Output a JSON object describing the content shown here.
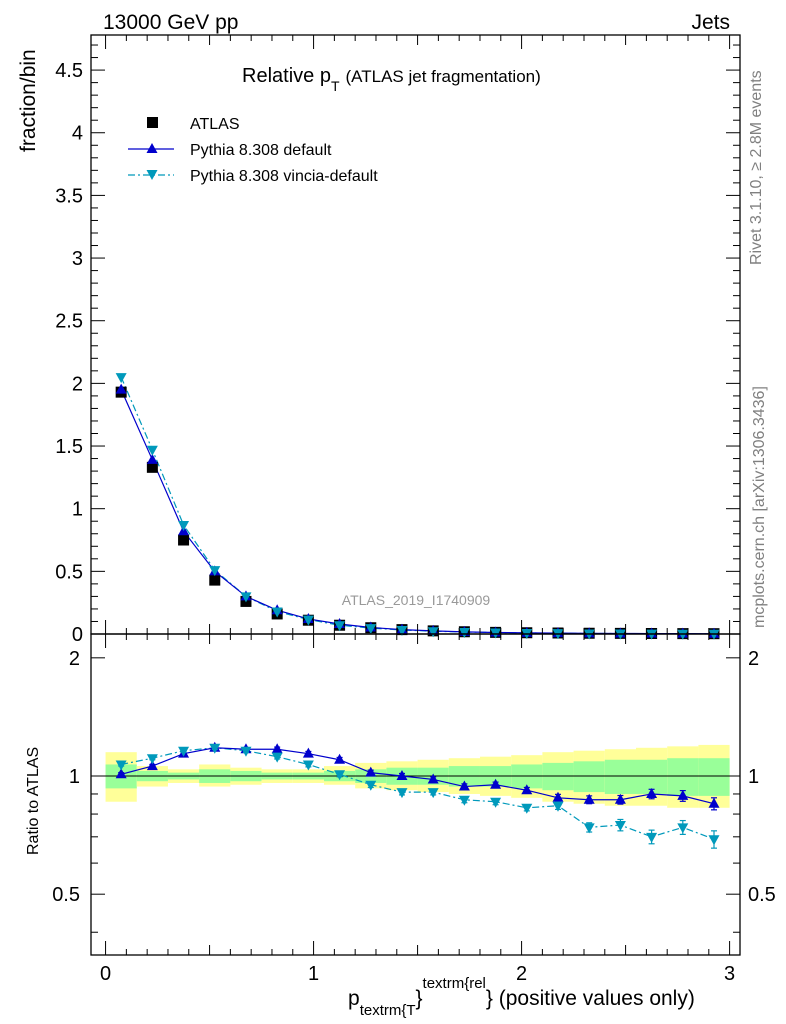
{
  "header": {
    "energy_label": "13000 GeV pp",
    "process_label": "Jets"
  },
  "side_labels": {
    "rivet": "Rivet 3.1.10, ≥ 2.8M events",
    "source": "mcplots.cern.ch [arXiv:1306.3436]"
  },
  "colors": {
    "atlas": "#000000",
    "default": "#0000cc",
    "vincia": "#0099bb",
    "band_inner": "#99ff99",
    "band_outer": "#ffff99",
    "watermark": "#999999"
  },
  "chart_data": {
    "type": "line",
    "title": "Relative p",
    "title_subscript": "T",
    "title_suffix": "(ATLAS jet fragmentation)",
    "analysis_id": "ATLAS_2019_I1740909",
    "xlabel_main": "p",
    "xlabel_sub": "textrm{T",
    "xlabel_sup": "textrm{rel",
    "xlabel_brace": "}",
    "xlabel_tail": "} (positive values only)",
    "ylabel": "fraction/bin",
    "ratio_ylabel": "Ratio to ATLAS",
    "xlim": [
      -0.07,
      3.05
    ],
    "ylim": [
      0,
      4.78
    ],
    "ratio_ylim": [
      0.35,
      2.3
    ],
    "x_ticks": [
      "0",
      "1",
      "2",
      "3"
    ],
    "y_ticks": [
      "0",
      "0.5",
      "1",
      "1.5",
      "2",
      "2.5",
      "3",
      "3.5",
      "4",
      "4.5"
    ],
    "ratio_ticks": [
      "0.5",
      "1",
      "2"
    ],
    "legend_position": "top-left",
    "bin_edges": [
      0,
      0.15,
      0.3,
      0.45,
      0.6,
      0.75,
      0.9,
      1.05,
      1.2,
      1.35,
      1.5,
      1.65,
      1.8,
      1.95,
      2.1,
      2.25,
      2.4,
      2.55,
      2.7,
      2.85,
      3.0
    ],
    "series": [
      {
        "name": "ATLAS",
        "marker": "square",
        "values": [
          1.93,
          1.33,
          0.75,
          0.43,
          0.26,
          0.16,
          0.11,
          0.07,
          0.05,
          0.035,
          0.025,
          0.018,
          0.013,
          0.01,
          0.008,
          0.006,
          0.005,
          0.004,
          0.003,
          0.0025
        ]
      },
      {
        "name": "Pythia 8.308 default",
        "marker": "triangle-up",
        "line": "solid",
        "values": [
          1.95,
          1.39,
          0.82,
          0.5,
          0.3,
          0.19,
          0.12,
          0.08,
          0.052,
          0.035,
          0.025,
          0.017,
          0.012,
          0.009,
          0.007,
          0.0053,
          0.0044,
          0.0036,
          0.0027,
          0.0021
        ],
        "ratio": [
          1.01,
          1.06,
          1.14,
          1.18,
          1.17,
          1.17,
          1.14,
          1.1,
          1.02,
          1.0,
          0.98,
          0.94,
          0.95,
          0.92,
          0.88,
          0.87,
          0.87,
          0.9,
          0.89,
          0.85
        ],
        "ratio_err": [
          0.01,
          0.01,
          0.01,
          0.012,
          0.012,
          0.015,
          0.015,
          0.015,
          0.015,
          0.015,
          0.015,
          0.015,
          0.015,
          0.015,
          0.018,
          0.02,
          0.022,
          0.025,
          0.028,
          0.03
        ]
      },
      {
        "name": "Pythia 8.308 vincia-default",
        "marker": "triangle-down",
        "line": "dash-dot",
        "values": [
          2.05,
          1.47,
          0.87,
          0.51,
          0.3,
          0.18,
          0.115,
          0.07,
          0.047,
          0.032,
          0.022,
          0.016,
          0.012,
          0.0083,
          0.0066,
          0.0044,
          0.0037,
          0.0028,
          0.0022,
          0.0017
        ],
        "ratio": [
          1.07,
          1.11,
          1.16,
          1.18,
          1.16,
          1.12,
          1.07,
          1.01,
          0.95,
          0.91,
          0.91,
          0.87,
          0.86,
          0.83,
          0.84,
          0.74,
          0.75,
          0.7,
          0.74,
          0.69
        ],
        "ratio_err": [
          0.01,
          0.01,
          0.01,
          0.012,
          0.012,
          0.015,
          0.015,
          0.015,
          0.015,
          0.015,
          0.015,
          0.015,
          0.015,
          0.015,
          0.018,
          0.02,
          0.025,
          0.028,
          0.03,
          0.035
        ]
      }
    ],
    "uncertainty_band": {
      "inner_low": [
        0.93,
        0.97,
        0.98,
        0.96,
        0.97,
        0.98,
        0.98,
        0.97,
        0.96,
        0.95,
        0.95,
        0.94,
        0.94,
        0.93,
        0.92,
        0.91,
        0.9,
        0.9,
        0.89,
        0.89
      ],
      "inner_high": [
        1.07,
        1.03,
        1.02,
        1.04,
        1.03,
        1.02,
        1.02,
        1.03,
        1.04,
        1.05,
        1.05,
        1.06,
        1.06,
        1.07,
        1.08,
        1.09,
        1.1,
        1.1,
        1.11,
        1.11
      ],
      "outer_low": [
        0.86,
        0.94,
        0.96,
        0.94,
        0.95,
        0.96,
        0.96,
        0.95,
        0.93,
        0.92,
        0.91,
        0.9,
        0.89,
        0.88,
        0.86,
        0.85,
        0.84,
        0.84,
        0.83,
        0.83
      ],
      "outer_high": [
        1.15,
        1.06,
        1.04,
        1.07,
        1.05,
        1.04,
        1.04,
        1.06,
        1.08,
        1.09,
        1.1,
        1.11,
        1.12,
        1.13,
        1.15,
        1.16,
        1.17,
        1.18,
        1.19,
        1.2
      ]
    }
  }
}
